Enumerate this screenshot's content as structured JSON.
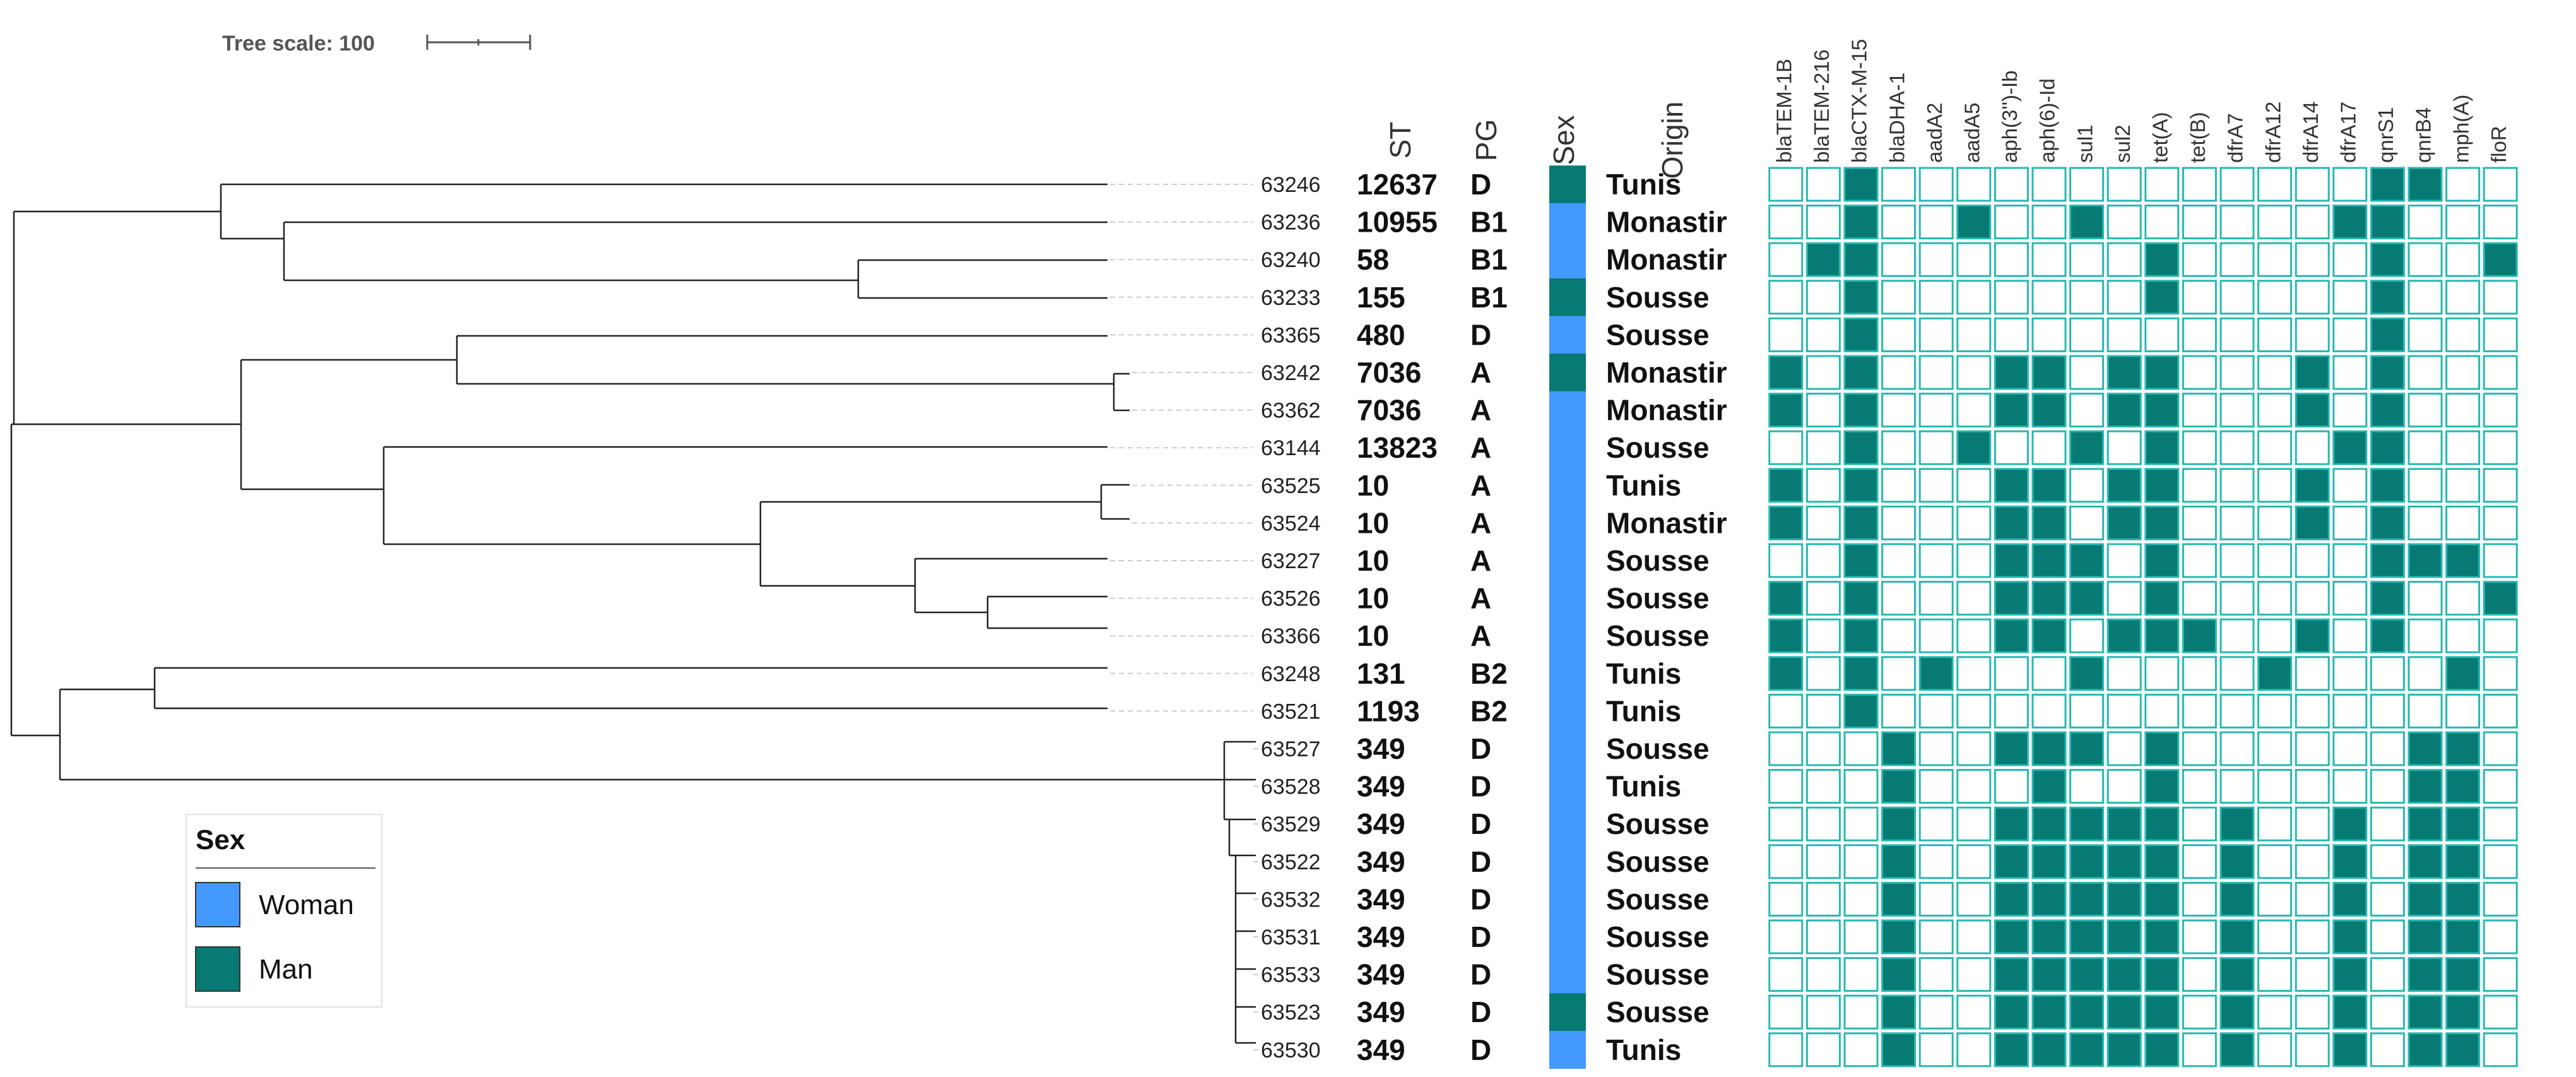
{
  "tree_scale": {
    "label": "Tree scale: 100"
  },
  "headers": {
    "st": "ST",
    "pg": "PG",
    "sex": "Sex",
    "origin": "Origin"
  },
  "genes": [
    "blaTEM-1B",
    "blaTEM-216",
    "blaCTX-M-15",
    "blaDHA-1",
    "aadA2",
    "aadA5",
    "aph(3'')-Ib",
    "aph(6)-Id",
    "sul1",
    "sul2",
    "tet(A)",
    "tet(B)",
    "dfrA7",
    "dfrA12",
    "dfrA14",
    "dfrA17",
    "qnrS1",
    "qnrB4",
    "mph(A)",
    "floR"
  ],
  "colors": {
    "woman": "#4499ff",
    "man": "#067a73",
    "cell_border": "#26b8b0",
    "tree_line": "#222222"
  },
  "legend": {
    "title": "Sex",
    "items": [
      {
        "label": "Woman",
        "key": "woman"
      },
      {
        "label": "Man",
        "key": "man"
      }
    ]
  },
  "isolates": [
    {
      "id": "63246",
      "st": "12637",
      "pg": "D",
      "sex": "man",
      "origin": "Tunis",
      "genes": "00100000000000001100"
    },
    {
      "id": "63236",
      "st": "10955",
      "pg": "B1",
      "sex": "woman",
      "origin": "Monastir",
      "genes": "00100100100000011000"
    },
    {
      "id": "63240",
      "st": "58",
      "pg": "B1",
      "sex": "woman",
      "origin": "Monastir",
      "genes": "01100000001000001001"
    },
    {
      "id": "63233",
      "st": "155",
      "pg": "B1",
      "sex": "man",
      "origin": "Sousse",
      "genes": "00100000001000001000"
    },
    {
      "id": "63365",
      "st": "480",
      "pg": "D",
      "sex": "woman",
      "origin": "Sousse",
      "genes": "00100000000000001000"
    },
    {
      "id": "63242",
      "st": "7036",
      "pg": "A",
      "sex": "man",
      "origin": "Monastir",
      "genes": "10100011011000101000"
    },
    {
      "id": "63362",
      "st": "7036",
      "pg": "A",
      "sex": "woman",
      "origin": "Monastir",
      "genes": "10100011011000101000"
    },
    {
      "id": "63144",
      "st": "13823",
      "pg": "A",
      "sex": "woman",
      "origin": "Sousse",
      "genes": "00100100101000011000"
    },
    {
      "id": "63525",
      "st": "10",
      "pg": "A",
      "sex": "woman",
      "origin": "Tunis",
      "genes": "10100011011000101000"
    },
    {
      "id": "63524",
      "st": "10",
      "pg": "A",
      "sex": "woman",
      "origin": "Monastir",
      "genes": "10100011011000101000"
    },
    {
      "id": "63227",
      "st": "10",
      "pg": "A",
      "sex": "woman",
      "origin": "Sousse",
      "genes": "00100011101000001110"
    },
    {
      "id": "63526",
      "st": "10",
      "pg": "A",
      "sex": "woman",
      "origin": "Sousse",
      "genes": "10100011101000001001"
    },
    {
      "id": "63366",
      "st": "10",
      "pg": "A",
      "sex": "woman",
      "origin": "Sousse",
      "genes": "10100011011100101000"
    },
    {
      "id": "63248",
      "st": "131",
      "pg": "B2",
      "sex": "woman",
      "origin": "Tunis",
      "genes": "10101000100001000010"
    },
    {
      "id": "63521",
      "st": "1193",
      "pg": "B2",
      "sex": "woman",
      "origin": "Tunis",
      "genes": "00100000000000000000"
    },
    {
      "id": "63527",
      "st": "349",
      "pg": "D",
      "sex": "woman",
      "origin": "Sousse",
      "genes": "00010011101000000110"
    },
    {
      "id": "63528",
      "st": "349",
      "pg": "D",
      "sex": "woman",
      "origin": "Tunis",
      "genes": "00010001001000000110"
    },
    {
      "id": "63529",
      "st": "349",
      "pg": "D",
      "sex": "woman",
      "origin": "Sousse",
      "genes": "00010011111010010110"
    },
    {
      "id": "63522",
      "st": "349",
      "pg": "D",
      "sex": "woman",
      "origin": "Sousse",
      "genes": "00010011111010010110"
    },
    {
      "id": "63532",
      "st": "349",
      "pg": "D",
      "sex": "woman",
      "origin": "Sousse",
      "genes": "00010011111010010110"
    },
    {
      "id": "63531",
      "st": "349",
      "pg": "D",
      "sex": "woman",
      "origin": "Sousse",
      "genes": "00010011111010010110"
    },
    {
      "id": "63533",
      "st": "349",
      "pg": "D",
      "sex": "woman",
      "origin": "Sousse",
      "genes": "00010011111010010110"
    },
    {
      "id": "63523",
      "st": "349",
      "pg": "D",
      "sex": "man",
      "origin": "Sousse",
      "genes": "00010011111010010110"
    },
    {
      "id": "63530",
      "st": "349",
      "pg": "D",
      "sex": "woman",
      "origin": "Tunis",
      "genes": "00010011111010010110"
    }
  ]
}
